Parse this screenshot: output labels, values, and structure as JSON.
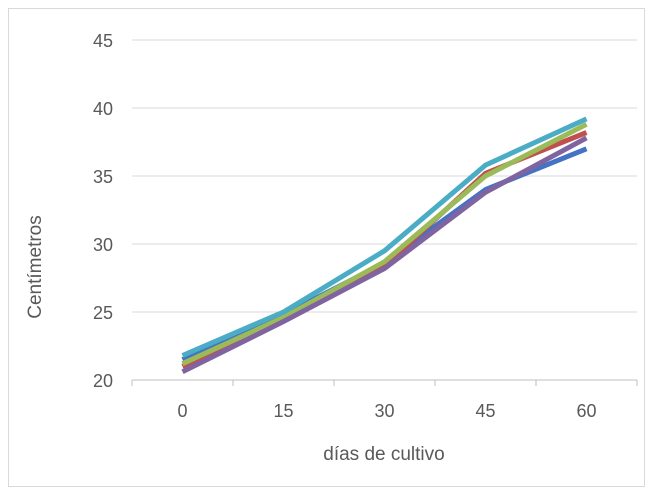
{
  "chart_data": {
    "type": "line",
    "categories": [
      "0",
      "15",
      "30",
      "45",
      "60"
    ],
    "series": [
      {
        "color": "#4472c4",
        "values": [
          21.5,
          24.8,
          28.6,
          34.0,
          37.0
        ]
      },
      {
        "color": "#c0504d",
        "values": [
          21.0,
          24.5,
          28.4,
          35.2,
          38.2
        ]
      },
      {
        "color": "#9bbb59",
        "values": [
          21.2,
          24.6,
          28.7,
          35.0,
          38.8
        ]
      },
      {
        "color": "#8064a2",
        "values": [
          20.6,
          24.3,
          28.2,
          33.8,
          37.8
        ]
      },
      {
        "color": "#4bacc6",
        "values": [
          21.8,
          25.0,
          29.5,
          35.8,
          39.2
        ]
      }
    ],
    "title": "",
    "xlabel": "días de cultivo",
    "ylabel": "Centímetros",
    "ylim": [
      20,
      45
    ],
    "yticks": [
      "20",
      "25",
      "30",
      "35",
      "40",
      "45"
    ],
    "grid": true,
    "gridColor": "#d9d9d9",
    "axisColor": "#bfbfbf"
  }
}
